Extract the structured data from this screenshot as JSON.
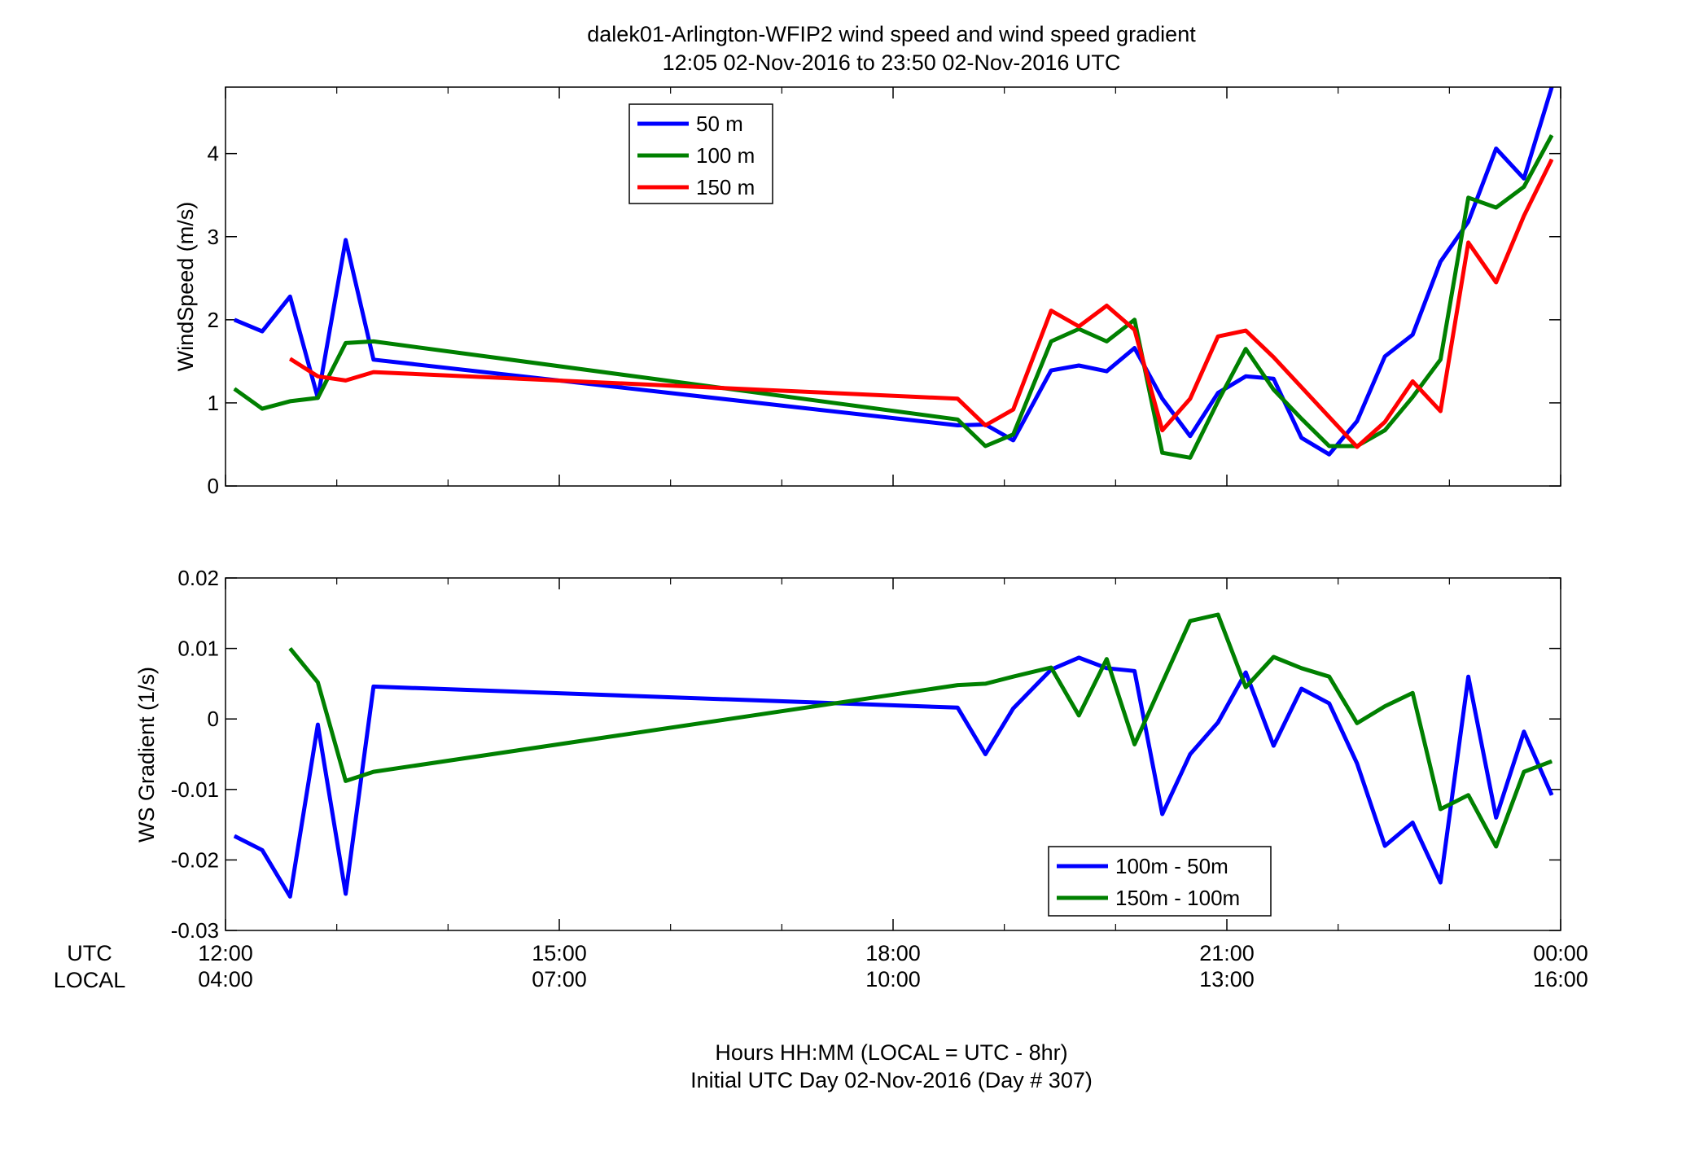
{
  "figure": {
    "title_line1": "dalek01-Arlington-WFIP2  wind speed and wind speed gradient",
    "title_line2": "12:05 02-Nov-2016 to 23:50 02-Nov-2016  UTC",
    "xlabel_line1": "Hours HH:MM  (LOCAL = UTC - 8hr)",
    "xlabel_line2": "Initial UTC Day 02-Nov-2016 (Day # 307)",
    "row_label_utc": "UTC",
    "row_label_local": "LOCAL",
    "x_ticks_utc": [
      "12:00",
      "15:00",
      "18:00",
      "21:00",
      "00:00"
    ],
    "x_ticks_local": [
      "04:00",
      "07:00",
      "10:00",
      "13:00",
      "16:00"
    ],
    "x_tick_hours": [
      12,
      15,
      18,
      21,
      24
    ]
  },
  "chart_data": [
    {
      "type": "line",
      "ylabel": "WindSpeed (m/s)",
      "xlim": [
        12,
        24
      ],
      "ylim": [
        0,
        4.8
      ],
      "yticks": [
        0,
        1,
        2,
        3,
        4
      ],
      "ytick_labels": [
        "0",
        "1",
        "2",
        "3",
        "4"
      ],
      "x_unit": "hours UTC",
      "legend_position": "top-left",
      "series": [
        {
          "name": "50 m",
          "color": "#0000ff",
          "points": [
            [
              12.08,
              2.0
            ],
            [
              12.33,
              1.86
            ],
            [
              12.58,
              2.28
            ],
            [
              12.83,
              1.06
            ],
            [
              13.08,
              2.96
            ],
            [
              13.33,
              1.52
            ],
            [
              18.58,
              0.73
            ],
            [
              18.83,
              0.74
            ],
            [
              19.08,
              0.55
            ],
            [
              19.42,
              1.39
            ],
            [
              19.67,
              1.45
            ],
            [
              19.92,
              1.38
            ],
            [
              20.17,
              1.66
            ],
            [
              20.42,
              1.05
            ],
            [
              20.67,
              0.6
            ],
            [
              20.92,
              1.12
            ],
            [
              21.17,
              1.32
            ],
            [
              21.42,
              1.29
            ],
            [
              21.67,
              0.58
            ],
            [
              21.92,
              0.38
            ],
            [
              22.17,
              0.78
            ],
            [
              22.42,
              1.56
            ],
            [
              22.67,
              1.82
            ],
            [
              22.92,
              2.7
            ],
            [
              23.17,
              3.18
            ],
            [
              23.42,
              4.06
            ],
            [
              23.67,
              3.7
            ],
            [
              23.92,
              4.8
            ]
          ]
        },
        {
          "name": "100 m",
          "color": "#008000",
          "points": [
            [
              12.08,
              1.17
            ],
            [
              12.33,
              0.93
            ],
            [
              12.58,
              1.02
            ],
            [
              12.83,
              1.06
            ],
            [
              13.08,
              1.72
            ],
            [
              13.33,
              1.74
            ],
            [
              18.58,
              0.8
            ],
            [
              18.83,
              0.48
            ],
            [
              19.08,
              0.62
            ],
            [
              19.42,
              1.74
            ],
            [
              19.67,
              1.89
            ],
            [
              19.92,
              1.74
            ],
            [
              20.17,
              2.0
            ],
            [
              20.42,
              0.4
            ],
            [
              20.67,
              0.34
            ],
            [
              20.92,
              1.02
            ],
            [
              21.17,
              1.65
            ],
            [
              21.42,
              1.16
            ],
            [
              21.67,
              0.81
            ],
            [
              21.92,
              0.48
            ],
            [
              22.17,
              0.48
            ],
            [
              22.42,
              0.67
            ],
            [
              22.67,
              1.07
            ],
            [
              22.92,
              1.52
            ],
            [
              23.17,
              3.47
            ],
            [
              23.42,
              3.35
            ],
            [
              23.67,
              3.6
            ],
            [
              23.92,
              4.22
            ]
          ]
        },
        {
          "name": "150 m",
          "color": "#ff0000",
          "points": [
            [
              12.58,
              1.53
            ],
            [
              12.83,
              1.32
            ],
            [
              13.08,
              1.27
            ],
            [
              13.33,
              1.37
            ],
            [
              18.58,
              1.05
            ],
            [
              18.83,
              0.73
            ],
            [
              19.08,
              0.92
            ],
            [
              19.42,
              2.11
            ],
            [
              19.67,
              1.92
            ],
            [
              19.92,
              2.17
            ],
            [
              20.17,
              1.88
            ],
            [
              20.42,
              0.67
            ],
            [
              20.67,
              1.05
            ],
            [
              20.92,
              1.8
            ],
            [
              21.17,
              1.87
            ],
            [
              21.42,
              1.55
            ],
            [
              22.17,
              0.47
            ],
            [
              22.42,
              0.77
            ],
            [
              22.67,
              1.26
            ],
            [
              22.92,
              0.9
            ],
            [
              23.17,
              2.93
            ],
            [
              23.42,
              2.45
            ],
            [
              23.67,
              3.25
            ],
            [
              23.92,
              3.93
            ]
          ]
        }
      ]
    },
    {
      "type": "line",
      "ylabel": "WS Gradient (1/s)",
      "xlim": [
        12,
        24
      ],
      "ylim": [
        -0.03,
        0.02
      ],
      "yticks": [
        -0.03,
        -0.02,
        -0.01,
        0,
        0.01,
        0.02
      ],
      "ytick_labels": [
        "-0.03",
        "-0.02",
        "-0.01",
        "0",
        "0.01",
        "0.02"
      ],
      "x_unit": "hours UTC",
      "legend_position": "bottom-center",
      "series": [
        {
          "name": "100m - 50m",
          "color": "#0000ff",
          "points": [
            [
              12.08,
              -0.0166
            ],
            [
              12.33,
              -0.0186
            ],
            [
              12.58,
              -0.0252
            ],
            [
              12.83,
              -0.0008
            ],
            [
              13.08,
              -0.0248
            ],
            [
              13.33,
              0.0046
            ],
            [
              18.58,
              0.0016
            ],
            [
              18.83,
              -0.005
            ],
            [
              19.08,
              0.0015
            ],
            [
              19.42,
              0.007
            ],
            [
              19.67,
              0.0087
            ],
            [
              19.92,
              0.0072
            ],
            [
              20.17,
              0.0068
            ],
            [
              20.42,
              -0.0135
            ],
            [
              20.67,
              -0.005
            ],
            [
              20.92,
              -0.0005
            ],
            [
              21.17,
              0.0066
            ],
            [
              21.42,
              -0.0038
            ],
            [
              21.67,
              0.0043
            ],
            [
              21.92,
              0.0022
            ],
            [
              22.17,
              -0.0063
            ],
            [
              22.42,
              -0.018
            ],
            [
              22.67,
              -0.0147
            ],
            [
              22.92,
              -0.0232
            ],
            [
              23.17,
              0.006
            ],
            [
              23.42,
              -0.014
            ],
            [
              23.67,
              -0.0018
            ],
            [
              23.92,
              -0.0108
            ]
          ]
        },
        {
          "name": "150m - 100m",
          "color": "#008000",
          "points": [
            [
              12.58,
              0.01
            ],
            [
              12.83,
              0.0052
            ],
            [
              13.08,
              -0.0088
            ],
            [
              13.33,
              -0.0075
            ],
            [
              18.58,
              0.0048
            ],
            [
              18.83,
              0.005
            ],
            [
              19.08,
              0.006
            ],
            [
              19.42,
              0.0073
            ],
            [
              19.67,
              0.0005
            ],
            [
              19.92,
              0.0085
            ],
            [
              20.17,
              -0.0036
            ],
            [
              20.67,
              0.0139
            ],
            [
              20.92,
              0.0148
            ],
            [
              21.17,
              0.0045
            ],
            [
              21.42,
              0.0088
            ],
            [
              21.67,
              0.0072
            ],
            [
              21.92,
              0.006
            ],
            [
              22.17,
              -0.0006
            ],
            [
              22.42,
              0.0018
            ],
            [
              22.67,
              0.0037
            ],
            [
              22.92,
              -0.0128
            ],
            [
              23.17,
              -0.0108
            ],
            [
              23.42,
              -0.0181
            ],
            [
              23.67,
              -0.0075
            ],
            [
              23.92,
              -0.006
            ]
          ]
        }
      ]
    }
  ]
}
